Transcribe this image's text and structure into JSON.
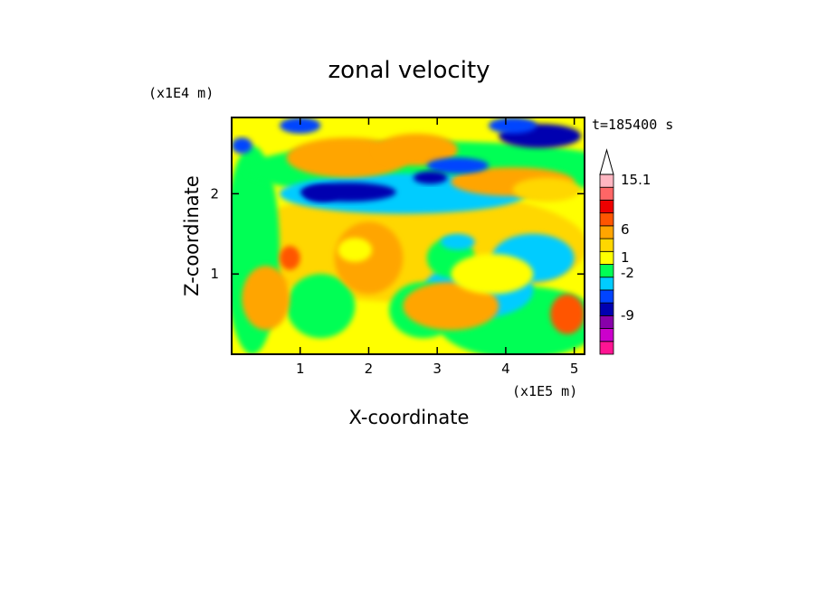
{
  "chart_data": {
    "type": "heatmap",
    "title": "zonal velocity",
    "xlabel": "X-coordinate",
    "ylabel": "Z-coordinate",
    "x_unit": "(x1E5 m)",
    "y_unit": "(x1E4 m)",
    "time_label": "t=185400 s",
    "xlim": [
      0,
      5.15
    ],
    "ylim": [
      0,
      2.95
    ],
    "x_ticks": [
      "1",
      "2",
      "3",
      "4",
      "5"
    ],
    "y_ticks": [
      "1",
      "2"
    ],
    "colorbar": {
      "labels": [
        "15.1",
        "6",
        "1",
        "-2",
        "-9"
      ],
      "colors": [
        "#ff1493",
        "#cc00cc",
        "#8800aa",
        "#0000b0",
        "#0044ff",
        "#00ccff",
        "#00ff55",
        "#ffff00",
        "#ffd700",
        "#ffa500",
        "#ff5500",
        "#ee0000",
        "#ff6666",
        "#ffb6c1",
        "#ffffff"
      ]
    },
    "field_description": "Contour field with values between roughly -13 and 15; positive (orange) layers near z=2.1-2.6 at x=1-2.5, strong negative (blue) bands near z=2.0 at x=1-2.5 and z=2.7 at x=4-5, near-zero green/yellow elsewhere"
  }
}
